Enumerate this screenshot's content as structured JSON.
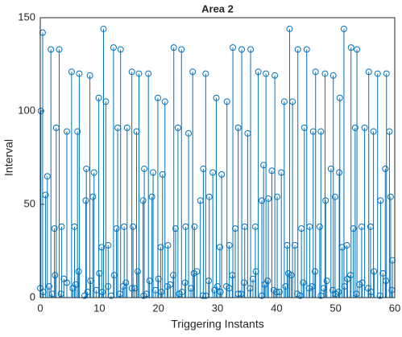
{
  "chart_data": {
    "type": "stem",
    "title": "Area 2",
    "x_label": "Triggering Instants",
    "y_label": "Interval",
    "color": "#0072bd",
    "xlim": [
      0,
      60
    ],
    "ylim": [
      0,
      150
    ],
    "xticks": [
      0,
      10,
      20,
      30,
      40,
      50,
      60
    ],
    "yticks": [
      0,
      50,
      100,
      150
    ],
    "grid": false,
    "x": [
      0.1,
      0.4,
      0.9,
      1.2,
      1.8,
      2.4,
      2.7,
      3.2,
      3.6,
      4.5,
      5.3,
      5.8,
      6.3,
      6.6,
      7.7,
      7.8,
      8.4,
      8.9,
      9.1,
      9.9,
      10.4,
      10.7,
      11.1,
      11.5,
      12.4,
      12.9,
      13.1,
      13.6,
      14.2,
      14.7,
      15.5,
      15.7,
      16.3,
      16.7,
      17.4,
      17.6,
      18.3,
      18.9,
      19.1,
      19.9,
      20.4,
      20.7,
      21.1,
      21.6,
      22.6,
      22.9,
      23.3,
      23.9,
      24.6,
      25.1,
      25.8,
      26.1,
      27.1,
      27.6,
      28.0,
      28.6,
      29.2,
      29.8,
      30.4,
      30.7,
      31.6,
      32.0,
      32.6,
      33.0,
      33.5,
      34.1,
      34.6,
      35.1,
      35.6,
      36.4,
      36.9,
      37.5,
      37.8,
      38.2,
      38.6,
      39.2,
      39.7,
      40.1,
      40.8,
      41.3,
      41.8,
      42.2,
      42.7,
      43.1,
      43.6,
      44.2,
      44.7,
      45.1,
      45.6,
      46.2,
      46.6,
      47.3,
      47.5,
      48.2,
      48.3,
      49.2,
      49.6,
      49.9,
      50.6,
      50.7,
      51.1,
      51.4,
      51.9,
      52.6,
      53.0,
      53.3,
      53.6,
      54.4,
      54.9,
      55.6,
      55.9,
      56.4,
      57.1,
      57.6,
      58.4,
      58.6,
      59.1,
      59.3,
      59.6,
      0.5,
      1.5,
      2.5,
      3.5,
      4.5,
      5.5,
      6.5,
      7.5,
      8.5,
      9.5,
      10.5,
      11.5,
      12.5,
      13.5,
      14.5,
      15.5,
      16.5,
      17.5,
      18.5,
      19.5,
      20.5,
      21.5,
      22.5,
      23.5,
      24.5,
      25.5,
      26.5,
      27.5,
      28.5,
      29.5,
      30.5,
      31.5,
      32.5,
      33.5,
      34.5,
      35.5,
      36.5,
      37.5,
      38.5,
      39.5,
      40.5,
      41.5,
      42.5,
      43.5,
      44.5,
      45.5,
      46.5,
      47.5,
      48.5,
      49.5,
      50.5,
      51.5,
      52.5,
      53.5,
      54.5,
      55.5,
      56.5,
      57.5,
      58.5,
      59.5,
      0,
      2,
      4,
      6,
      8,
      10,
      12,
      14,
      16,
      18,
      20,
      22,
      24,
      26,
      28,
      30,
      32,
      34,
      36,
      38,
      40,
      42,
      44,
      46,
      48,
      50,
      52,
      54,
      56,
      58
    ],
    "values": [
      100,
      142,
      55,
      65,
      133,
      37,
      91,
      133,
      38,
      89,
      121,
      38,
      89,
      120,
      52,
      69,
      119,
      54,
      67,
      107,
      27,
      144,
      105,
      28,
      134,
      37,
      91,
      133,
      38,
      91,
      121,
      38,
      89,
      120,
      52,
      69,
      120,
      54,
      67,
      107,
      27,
      66,
      105,
      28,
      134,
      37,
      91,
      133,
      38,
      88,
      121,
      38,
      52,
      69,
      120,
      54,
      67,
      107,
      27,
      66,
      105,
      28,
      134,
      37,
      91,
      133,
      38,
      88,
      133,
      38,
      121,
      52,
      71,
      120,
      53,
      68,
      119,
      54,
      67,
      105,
      28,
      144,
      105,
      28,
      133,
      37,
      91,
      133,
      38,
      89,
      121,
      38,
      89,
      120,
      52,
      69,
      119,
      54,
      67,
      107,
      27,
      144,
      28,
      134,
      37,
      91,
      133,
      38,
      91,
      121,
      38,
      89,
      120,
      52,
      69,
      120,
      89,
      54,
      20,
      3,
      6,
      12,
      2,
      8,
      5,
      14,
      1,
      9,
      4,
      3,
      6,
      12,
      2,
      8,
      5,
      14,
      1,
      9,
      4,
      3,
      6,
      12,
      2,
      8,
      5,
      14,
      1,
      9,
      4,
      3,
      6,
      12,
      2,
      8,
      5,
      14,
      1,
      9,
      4,
      3,
      6,
      12,
      2,
      8,
      5,
      14,
      1,
      9,
      4,
      3,
      6,
      12,
      2,
      8,
      5,
      14,
      1,
      9,
      4,
      5,
      2,
      10,
      7,
      3,
      13,
      1,
      6,
      5,
      2,
      10,
      7,
      3,
      13,
      1,
      6,
      5,
      2,
      10,
      7,
      3,
      13,
      1,
      6,
      5,
      2,
      10,
      7,
      3,
      13
    ]
  }
}
